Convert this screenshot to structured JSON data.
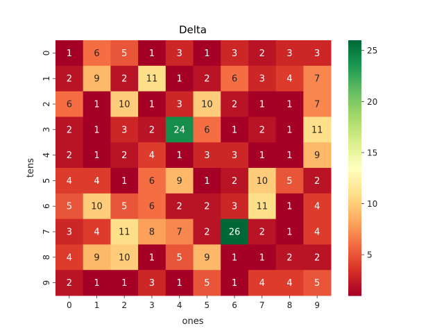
{
  "chart_data": {
    "type": "heatmap",
    "title": "Delta",
    "xlabel": "ones",
    "ylabel": "tens",
    "x_categories": [
      "0",
      "1",
      "2",
      "3",
      "4",
      "5",
      "6",
      "7",
      "8",
      "9"
    ],
    "y_categories": [
      "0",
      "1",
      "2",
      "3",
      "4",
      "5",
      "6",
      "7",
      "8",
      "9"
    ],
    "values": [
      [
        1,
        6,
        5,
        1,
        3,
        1,
        3,
        2,
        3,
        3
      ],
      [
        2,
        9,
        2,
        11,
        1,
        2,
        6,
        3,
        4,
        7
      ],
      [
        6,
        1,
        10,
        1,
        3,
        10,
        2,
        1,
        1,
        7
      ],
      [
        2,
        1,
        3,
        2,
        24,
        6,
        1,
        2,
        1,
        11
      ],
      [
        2,
        1,
        2,
        4,
        1,
        3,
        3,
        1,
        1,
        9
      ],
      [
        4,
        4,
        1,
        6,
        9,
        1,
        2,
        10,
        5,
        2
      ],
      [
        5,
        10,
        5,
        6,
        2,
        2,
        3,
        11,
        1,
        4
      ],
      [
        3,
        4,
        11,
        8,
        7,
        2,
        26,
        2,
        1,
        4
      ],
      [
        4,
        9,
        10,
        1,
        5,
        9,
        1,
        1,
        2,
        2
      ],
      [
        2,
        1,
        1,
        3,
        1,
        5,
        1,
        4,
        4,
        5
      ]
    ],
    "colormap": "RdYlGn",
    "color_range": [
      1,
      26
    ],
    "colorbar_ticks": [
      5,
      10,
      15,
      20,
      25
    ],
    "annotate": true,
    "colors": {
      "low": "#a50026",
      "mid": "#ffffbf",
      "high": "#006837"
    }
  }
}
